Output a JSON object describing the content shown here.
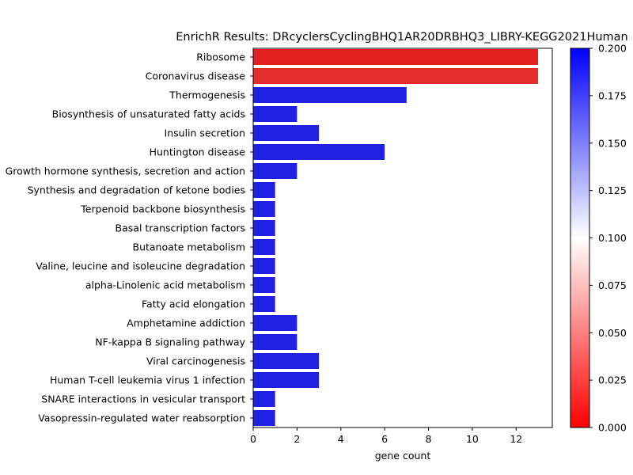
{
  "chart_data": {
    "type": "bar",
    "orientation": "horizontal",
    "title": "EnrichR Results: DRcyclersCyclingBHQ1AR20DRBHQ3_LIBRY-KEGG2021Human",
    "xlabel": "gene count",
    "ylabel": "",
    "xlim": [
      0,
      13.65
    ],
    "xticks": [
      "0",
      "2",
      "4",
      "6",
      "8",
      "10",
      "12"
    ],
    "categories": [
      "Ribosome",
      "Coronavirus disease",
      "Thermogenesis",
      "Biosynthesis of unsaturated fatty acids",
      "Insulin secretion",
      "Huntington disease",
      "Growth hormone synthesis, secretion and action",
      "Synthesis and degradation of ketone bodies",
      "Terpenoid backbone biosynthesis",
      "Basal transcription factors",
      "Butanoate metabolism",
      "Valine, leucine and isoleucine degradation",
      "alpha-Linolenic acid metabolism",
      "Fatty acid elongation",
      "Amphetamine addiction",
      "NF-kappa B signaling pathway",
      "Viral carcinogenesis",
      "Human T-cell leukemia virus 1 infection",
      "SNARE interactions in vesicular transport",
      "Vasopressin-regulated water reabsorption"
    ],
    "values": [
      13,
      13,
      7,
      2,
      3,
      6,
      2,
      1,
      1,
      1,
      1,
      1,
      1,
      1,
      2,
      2,
      3,
      3,
      1,
      1
    ],
    "bar_colors": [
      "#e42121",
      "#e42d2d",
      "#2121e4",
      "#2121e4",
      "#2121e4",
      "#2121e4",
      "#2121e4",
      "#2121e4",
      "#2121e4",
      "#2121e4",
      "#2121e4",
      "#2121e4",
      "#2121e4",
      "#2121e4",
      "#2121e4",
      "#2121e4",
      "#2121e4",
      "#2121e4",
      "#2121e4",
      "#2121e4"
    ],
    "colorbar": {
      "colormap": "bwr_r",
      "range": [
        0,
        0.2
      ],
      "ticks": [
        "0.000",
        "0.025",
        "0.050",
        "0.075",
        "0.100",
        "0.125",
        "0.150",
        "0.175",
        "0.200"
      ],
      "colors": [
        "#ff0000",
        "#ffffff",
        "#0000ff"
      ]
    },
    "grid": false,
    "legend": "none"
  }
}
